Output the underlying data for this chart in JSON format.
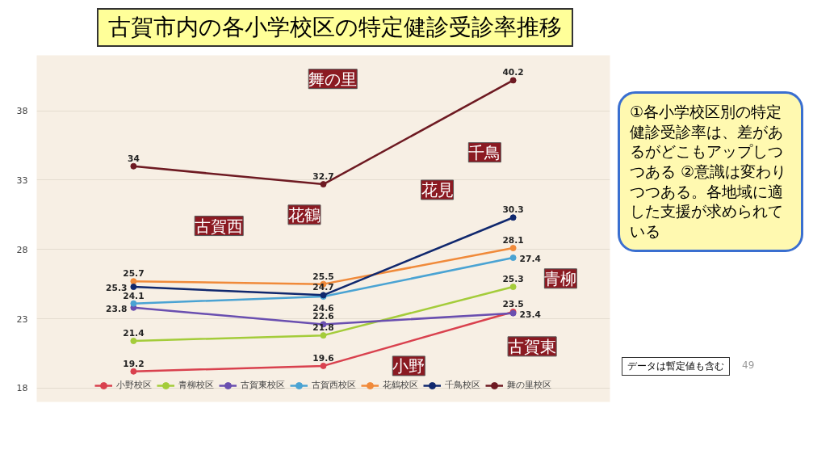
{
  "chart_data": {
    "type": "line",
    "title": "古賀市内の各小学校区の特定健診受診率推移",
    "categories": [
      null,
      null,
      null
    ],
    "series": [
      {
        "name": "小野校区",
        "color": "#d9414e",
        "values": [
          19.2,
          19.6,
          23.5
        ]
      },
      {
        "name": "青柳校区",
        "color": "#a4cc3a",
        "values": [
          21.4,
          21.8,
          25.3
        ]
      },
      {
        "name": "古賀東校区",
        "color": "#6a4fb0",
        "values": [
          23.8,
          22.6,
          23.4
        ]
      },
      {
        "name": "古賀西校区",
        "color": "#4aa3d3",
        "values": [
          24.1,
          24.6,
          27.4
        ]
      },
      {
        "name": "花鶴校区",
        "color": "#f08a3a",
        "values": [
          25.7,
          25.5,
          28.1
        ]
      },
      {
        "name": "千鳥校区",
        "color": "#10286e",
        "values": [
          25.3,
          24.7,
          30.3
        ]
      },
      {
        "name": "舞の里校区",
        "color": "#6e1a22",
        "values": [
          34,
          32.7,
          40.2
        ]
      }
    ],
    "ylim": [
      17,
      42
    ],
    "yticks": [
      18,
      23,
      28,
      33,
      38
    ],
    "grid": "y",
    "legend": "bottom",
    "marker": "circle",
    "line_style": "solid",
    "data_labels": true,
    "annotations": [
      "舞の里",
      "千鳥",
      "花見",
      "花鶴",
      "古賀西",
      "青柳",
      "古賀東",
      "小野",
      "①各小学校区別の特定健診受診率は、差があるがどこもアップしつつある ②意識は変わりつつある。各地域に適した支援が求められている",
      "データは暫定値も含む",
      "49"
    ]
  }
}
